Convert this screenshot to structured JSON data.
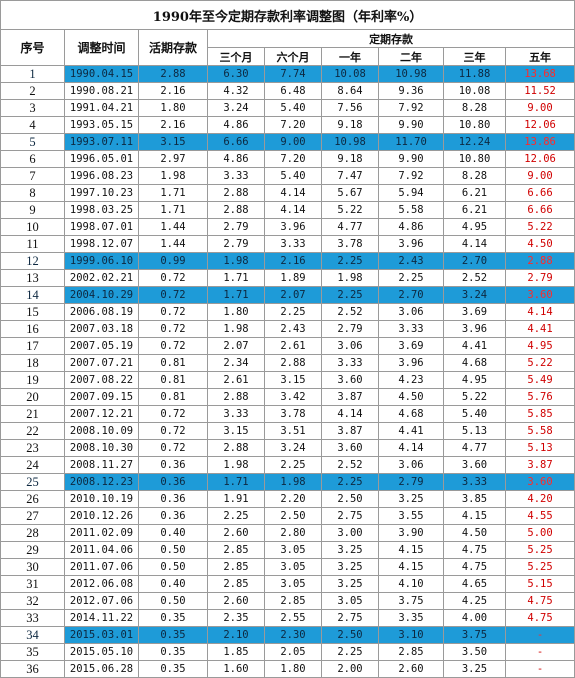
{
  "title": "1990年至今定期存款利率调整图（年利率%）",
  "headers": {
    "seq": "序号",
    "date": "调整时间",
    "demand": "活期存款",
    "fixed_group": "定期存款",
    "terms": [
      "三个月",
      "六个月",
      "一年",
      "二年",
      "三年",
      "五年"
    ]
  },
  "highlight_color": "#1e9bd8",
  "five_year_color": "#d00000",
  "rows": [
    {
      "seq": "1",
      "date": "1990.04.15",
      "demand": "2.88",
      "rates": [
        "6.30",
        "7.74",
        "10.08",
        "10.98",
        "11.88",
        "13.68"
      ],
      "highlight": true
    },
    {
      "seq": "2",
      "date": "1990.08.21",
      "demand": "2.16",
      "rates": [
        "4.32",
        "6.48",
        "8.64",
        "9.36",
        "10.08",
        "11.52"
      ],
      "highlight": false
    },
    {
      "seq": "3",
      "date": "1991.04.21",
      "demand": "1.80",
      "rates": [
        "3.24",
        "5.40",
        "7.56",
        "7.92",
        "8.28",
        "9.00"
      ],
      "highlight": false
    },
    {
      "seq": "4",
      "date": "1993.05.15",
      "demand": "2.16",
      "rates": [
        "4.86",
        "7.20",
        "9.18",
        "9.90",
        "10.80",
        "12.06"
      ],
      "highlight": false
    },
    {
      "seq": "5",
      "date": "1993.07.11",
      "demand": "3.15",
      "rates": [
        "6.66",
        "9.00",
        "10.98",
        "11.70",
        "12.24",
        "13.86"
      ],
      "highlight": true
    },
    {
      "seq": "6",
      "date": "1996.05.01",
      "demand": "2.97",
      "rates": [
        "4.86",
        "7.20",
        "9.18",
        "9.90",
        "10.80",
        "12.06"
      ],
      "highlight": false
    },
    {
      "seq": "7",
      "date": "1996.08.23",
      "demand": "1.98",
      "rates": [
        "3.33",
        "5.40",
        "7.47",
        "7.92",
        "8.28",
        "9.00"
      ],
      "highlight": false
    },
    {
      "seq": "8",
      "date": "1997.10.23",
      "demand": "1.71",
      "rates": [
        "2.88",
        "4.14",
        "5.67",
        "5.94",
        "6.21",
        "6.66"
      ],
      "highlight": false
    },
    {
      "seq": "9",
      "date": "1998.03.25",
      "demand": "1.71",
      "rates": [
        "2.88",
        "4.14",
        "5.22",
        "5.58",
        "6.21",
        "6.66"
      ],
      "highlight": false
    },
    {
      "seq": "10",
      "date": "1998.07.01",
      "demand": "1.44",
      "rates": [
        "2.79",
        "3.96",
        "4.77",
        "4.86",
        "4.95",
        "5.22"
      ],
      "highlight": false
    },
    {
      "seq": "11",
      "date": "1998.12.07",
      "demand": "1.44",
      "rates": [
        "2.79",
        "3.33",
        "3.78",
        "3.96",
        "4.14",
        "4.50"
      ],
      "highlight": false
    },
    {
      "seq": "12",
      "date": "1999.06.10",
      "demand": "0.99",
      "rates": [
        "1.98",
        "2.16",
        "2.25",
        "2.43",
        "2.70",
        "2.88"
      ],
      "highlight": true
    },
    {
      "seq": "13",
      "date": "2002.02.21",
      "demand": "0.72",
      "rates": [
        "1.71",
        "1.89",
        "1.98",
        "2.25",
        "2.52",
        "2.79"
      ],
      "highlight": false
    },
    {
      "seq": "14",
      "date": "2004.10.29",
      "demand": "0.72",
      "rates": [
        "1.71",
        "2.07",
        "2.25",
        "2.70",
        "3.24",
        "3.60"
      ],
      "highlight": true
    },
    {
      "seq": "15",
      "date": "2006.08.19",
      "demand": "0.72",
      "rates": [
        "1.80",
        "2.25",
        "2.52",
        "3.06",
        "3.69",
        "4.14"
      ],
      "highlight": false
    },
    {
      "seq": "16",
      "date": "2007.03.18",
      "demand": "0.72",
      "rates": [
        "1.98",
        "2.43",
        "2.79",
        "3.33",
        "3.96",
        "4.41"
      ],
      "highlight": false
    },
    {
      "seq": "17",
      "date": "2007.05.19",
      "demand": "0.72",
      "rates": [
        "2.07",
        "2.61",
        "3.06",
        "3.69",
        "4.41",
        "4.95"
      ],
      "highlight": false
    },
    {
      "seq": "18",
      "date": "2007.07.21",
      "demand": "0.81",
      "rates": [
        "2.34",
        "2.88",
        "3.33",
        "3.96",
        "4.68",
        "5.22"
      ],
      "highlight": false
    },
    {
      "seq": "19",
      "date": "2007.08.22",
      "demand": "0.81",
      "rates": [
        "2.61",
        "3.15",
        "3.60",
        "4.23",
        "4.95",
        "5.49"
      ],
      "highlight": false
    },
    {
      "seq": "20",
      "date": "2007.09.15",
      "demand": "0.81",
      "rates": [
        "2.88",
        "3.42",
        "3.87",
        "4.50",
        "5.22",
        "5.76"
      ],
      "highlight": false
    },
    {
      "seq": "21",
      "date": "2007.12.21",
      "demand": "0.72",
      "rates": [
        "3.33",
        "3.78",
        "4.14",
        "4.68",
        "5.40",
        "5.85"
      ],
      "highlight": false
    },
    {
      "seq": "22",
      "date": "2008.10.09",
      "demand": "0.72",
      "rates": [
        "3.15",
        "3.51",
        "3.87",
        "4.41",
        "5.13",
        "5.58"
      ],
      "highlight": false
    },
    {
      "seq": "23",
      "date": "2008.10.30",
      "demand": "0.72",
      "rates": [
        "2.88",
        "3.24",
        "3.60",
        "4.14",
        "4.77",
        "5.13"
      ],
      "highlight": false
    },
    {
      "seq": "24",
      "date": "2008.11.27",
      "demand": "0.36",
      "rates": [
        "1.98",
        "2.25",
        "2.52",
        "3.06",
        "3.60",
        "3.87"
      ],
      "highlight": false
    },
    {
      "seq": "25",
      "date": "2008.12.23",
      "demand": "0.36",
      "rates": [
        "1.71",
        "1.98",
        "2.25",
        "2.79",
        "3.33",
        "3.60"
      ],
      "highlight": true
    },
    {
      "seq": "26",
      "date": "2010.10.19",
      "demand": "0.36",
      "rates": [
        "1.91",
        "2.20",
        "2.50",
        "3.25",
        "3.85",
        "4.20"
      ],
      "highlight": false
    },
    {
      "seq": "27",
      "date": "2010.12.26",
      "demand": "0.36",
      "rates": [
        "2.25",
        "2.50",
        "2.75",
        "3.55",
        "4.15",
        "4.55"
      ],
      "highlight": false
    },
    {
      "seq": "28",
      "date": "2011.02.09",
      "demand": "0.40",
      "rates": [
        "2.60",
        "2.80",
        "3.00",
        "3.90",
        "4.50",
        "5.00"
      ],
      "highlight": false
    },
    {
      "seq": "29",
      "date": "2011.04.06",
      "demand": "0.50",
      "rates": [
        "2.85",
        "3.05",
        "3.25",
        "4.15",
        "4.75",
        "5.25"
      ],
      "highlight": false
    },
    {
      "seq": "30",
      "date": "2011.07.06",
      "demand": "0.50",
      "rates": [
        "2.85",
        "3.05",
        "3.25",
        "4.15",
        "4.75",
        "5.25"
      ],
      "highlight": false
    },
    {
      "seq": "31",
      "date": "2012.06.08",
      "demand": "0.40",
      "rates": [
        "2.85",
        "3.05",
        "3.25",
        "4.10",
        "4.65",
        "5.15"
      ],
      "highlight": false
    },
    {
      "seq": "32",
      "date": "2012.07.06",
      "demand": "0.50",
      "rates": [
        "2.60",
        "2.85",
        "3.05",
        "3.75",
        "4.25",
        "4.75"
      ],
      "highlight": false
    },
    {
      "seq": "33",
      "date": "2014.11.22",
      "demand": "0.35",
      "rates": [
        "2.35",
        "2.55",
        "2.75",
        "3.35",
        "4.00",
        "4.75"
      ],
      "highlight": false
    },
    {
      "seq": "34",
      "date": "2015.03.01",
      "demand": "0.35",
      "rates": [
        "2.10",
        "2.30",
        "2.50",
        "3.10",
        "3.75",
        "-"
      ],
      "highlight": true
    },
    {
      "seq": "35",
      "date": "2015.05.10",
      "demand": "0.35",
      "rates": [
        "1.85",
        "2.05",
        "2.25",
        "2.85",
        "3.50",
        "-"
      ],
      "highlight": false
    },
    {
      "seq": "36",
      "date": "2015.06.28",
      "demand": "0.35",
      "rates": [
        "1.60",
        "1.80",
        "2.00",
        "2.60",
        "3.25",
        "-"
      ],
      "highlight": false
    }
  ]
}
